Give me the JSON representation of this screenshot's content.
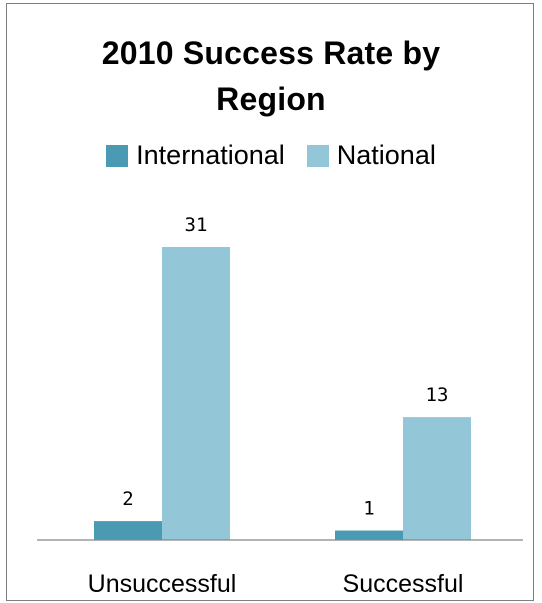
{
  "chart_data": {
    "type": "bar",
    "title": "2010 Success Rate by Region",
    "categories": [
      "Unsuccessful",
      "Successful"
    ],
    "series": [
      {
        "name": "International",
        "values": [
          2,
          1
        ],
        "color": "#4a9ab3"
      },
      {
        "name": "National",
        "values": [
          31,
          13
        ],
        "color": "#93c6d6"
      }
    ],
    "ylim": [
      0,
      31
    ],
    "legend_position": "top",
    "grid": false,
    "data_labels": true
  },
  "title_lines": [
    "2010 Success Rate by",
    "Region"
  ]
}
